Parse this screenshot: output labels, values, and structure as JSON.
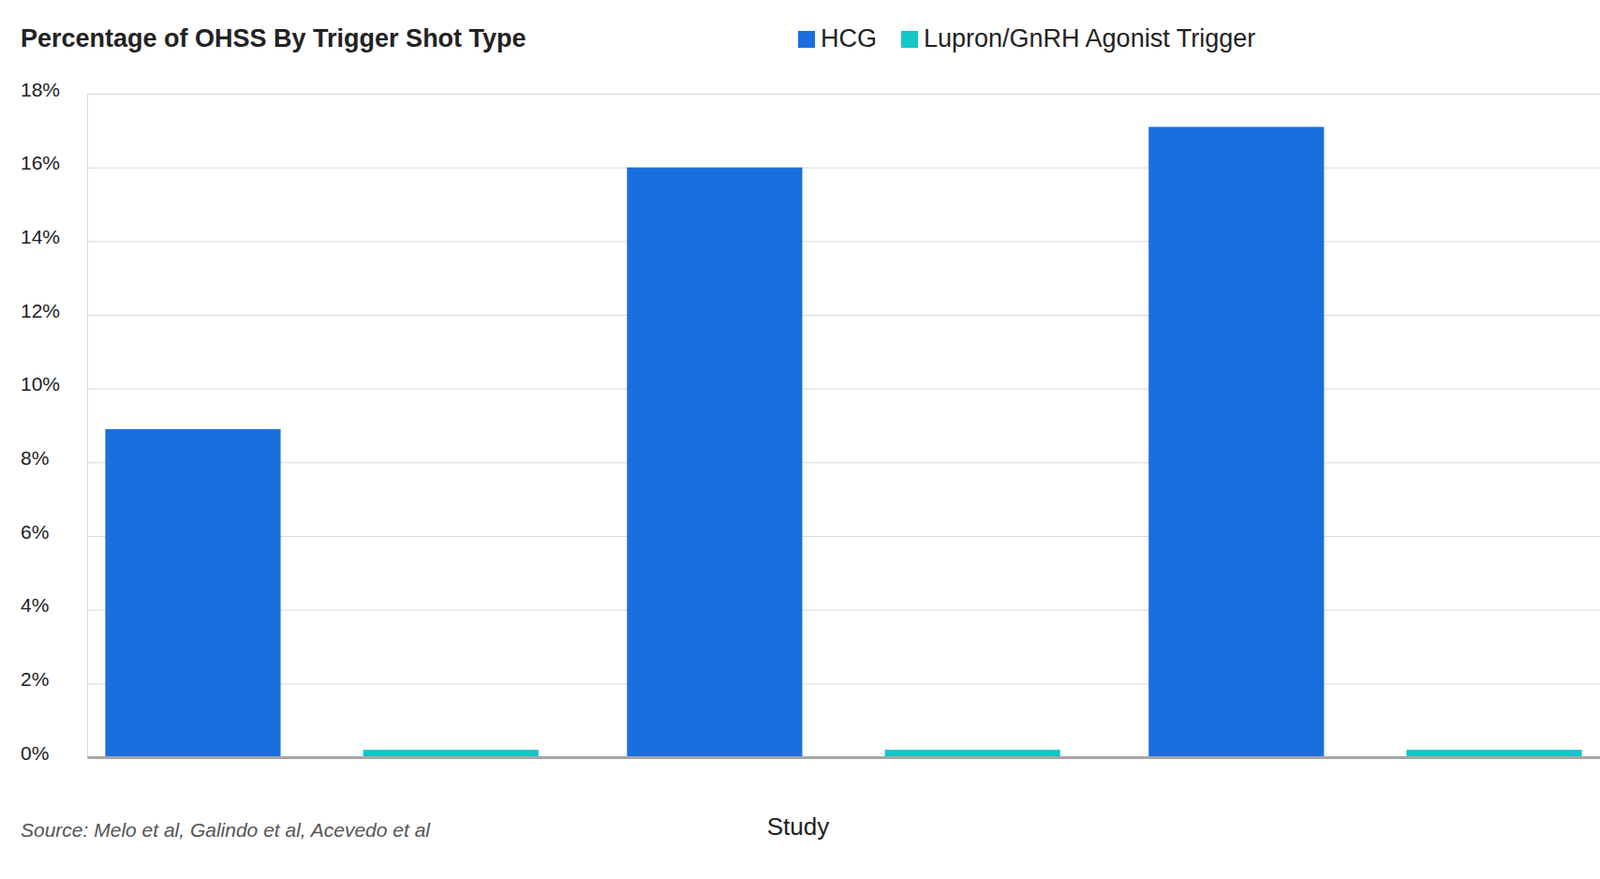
{
  "chart_data": {
    "type": "bar",
    "title": "Percentage of OHSS By Trigger Shot Type",
    "xlabel": "Study",
    "source": "Source: Melo et al, Galindo et al, Acevedo et al",
    "categories": [
      null,
      null,
      null
    ],
    "series": [
      {
        "name": "HCG",
        "color": "#1a6fdf",
        "values": [
          8.9,
          16,
          17.1
        ]
      },
      {
        "name": "Lupron/GnRH Agonist Trigger",
        "color": "#12c6c9",
        "values": [
          0.2,
          0.2,
          0.2
        ]
      }
    ],
    "ylim": [
      0,
      18
    ],
    "yticks": [
      {
        "value": 0,
        "label": "0%"
      },
      {
        "value": 2,
        "label": "2%"
      },
      {
        "value": 4,
        "label": "4%"
      },
      {
        "value": 6,
        "label": "6%"
      },
      {
        "value": 8,
        "label": "8%"
      },
      {
        "value": 10,
        "label": "10%"
      },
      {
        "value": 12,
        "label": "12%"
      },
      {
        "value": 14,
        "label": "14%"
      },
      {
        "value": 16,
        "label": "16%"
      },
      {
        "value": 18,
        "label": "18%"
      }
    ],
    "grid": true,
    "legend": "top"
  }
}
